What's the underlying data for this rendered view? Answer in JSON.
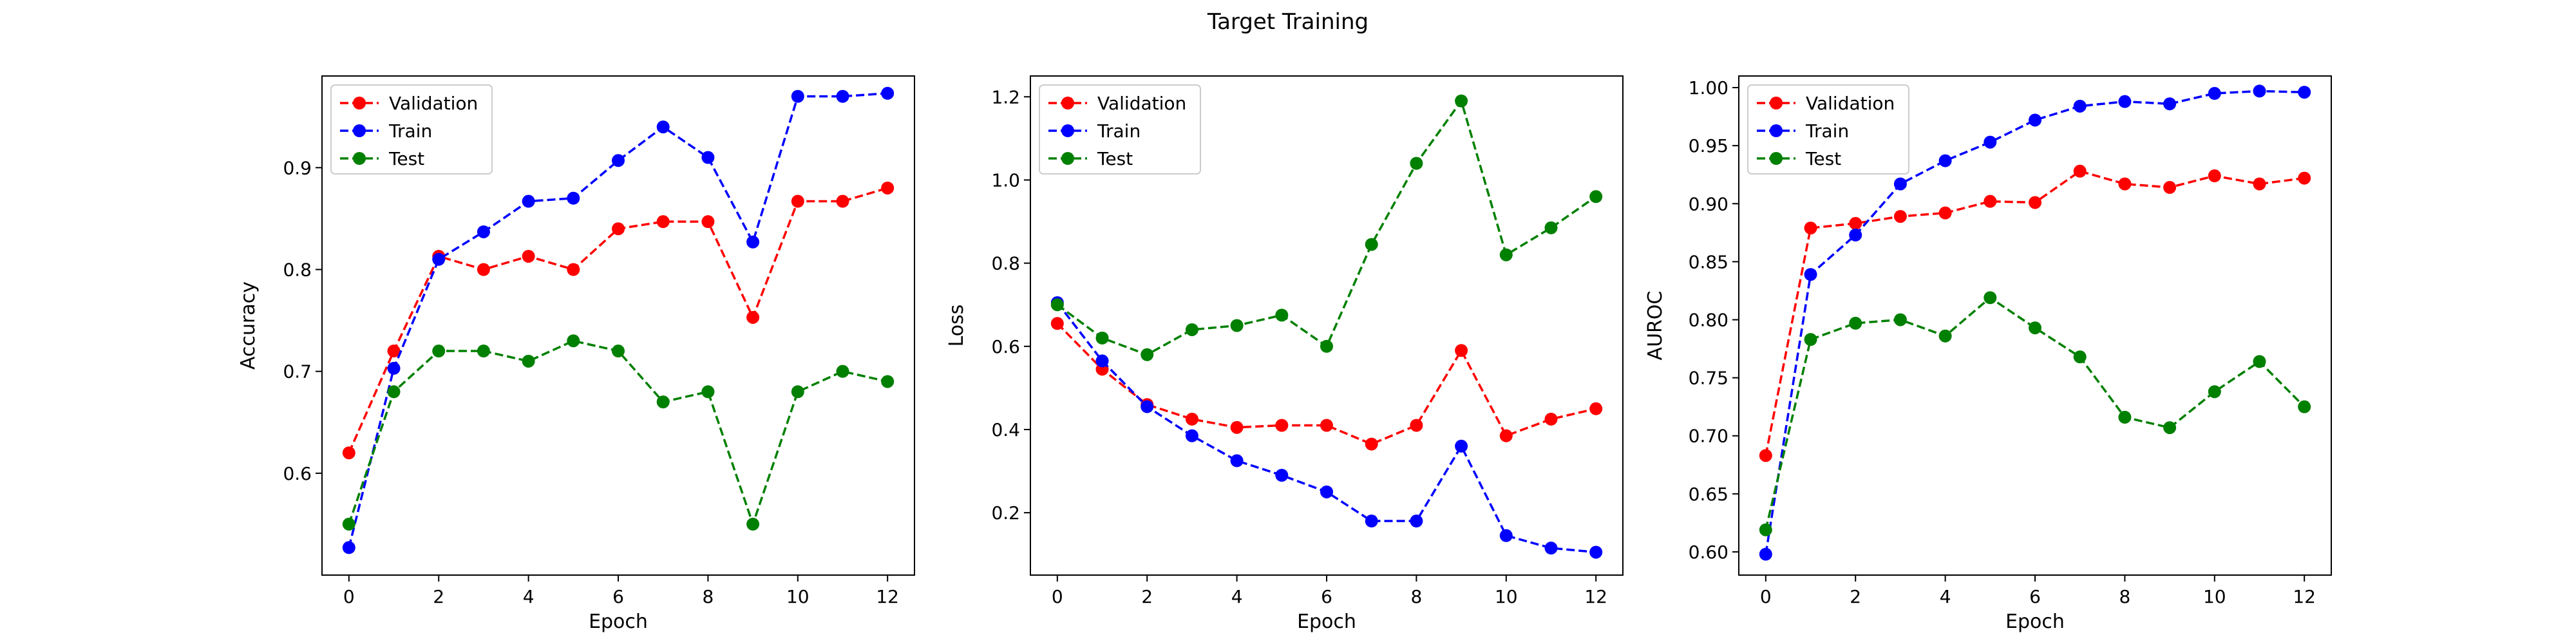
{
  "figure": {
    "title": "Target Training"
  },
  "colors": {
    "Validation": "#ff0000",
    "Train": "#0000ff",
    "Test": "#008000"
  },
  "chart_data": [
    {
      "type": "line",
      "title": "",
      "xlabel": "Epoch",
      "ylabel": "Accuracy",
      "xlim": [
        -0.6,
        12.6
      ],
      "ylim": [
        0.5,
        0.99
      ],
      "xticks": [
        0,
        2,
        4,
        6,
        8,
        10,
        12
      ],
      "yticks": [
        0.6,
        0.7,
        0.8,
        0.9
      ],
      "ytick_labels": [
        "0.6",
        "0.7",
        "0.8",
        "0.9"
      ],
      "legend": "top-left",
      "grid": false,
      "x": [
        0,
        1,
        2,
        3,
        4,
        5,
        6,
        7,
        8,
        9,
        10,
        11,
        12
      ],
      "series": [
        {
          "name": "Validation",
          "values": [
            0.62,
            0.72,
            0.813,
            0.8,
            0.813,
            0.8,
            0.84,
            0.847,
            0.847,
            0.753,
            0.867,
            0.867,
            0.88
          ]
        },
        {
          "name": "Train",
          "values": [
            0.527,
            0.703,
            0.81,
            0.837,
            0.867,
            0.87,
            0.907,
            0.94,
            0.91,
            0.827,
            0.97,
            0.97,
            0.973
          ]
        },
        {
          "name": "Test",
          "values": [
            0.55,
            0.68,
            0.72,
            0.72,
            0.71,
            0.73,
            0.72,
            0.67,
            0.68,
            0.55,
            0.68,
            0.7,
            0.69
          ]
        }
      ]
    },
    {
      "type": "line",
      "title": "",
      "xlabel": "Epoch",
      "ylabel": "Loss",
      "xlim": [
        -0.6,
        12.6
      ],
      "ylim": [
        0.05,
        1.25
      ],
      "xticks": [
        0,
        2,
        4,
        6,
        8,
        10,
        12
      ],
      "yticks": [
        0.2,
        0.4,
        0.6,
        0.8,
        1.0,
        1.2
      ],
      "ytick_labels": [
        "0.2",
        "0.4",
        "0.6",
        "0.8",
        "1.0",
        "1.2"
      ],
      "legend": "top-left",
      "grid": false,
      "x": [
        0,
        1,
        2,
        3,
        4,
        5,
        6,
        7,
        8,
        9,
        10,
        11,
        12
      ],
      "series": [
        {
          "name": "Validation",
          "values": [
            0.655,
            0.545,
            0.46,
            0.425,
            0.405,
            0.41,
            0.41,
            0.365,
            0.41,
            0.59,
            0.385,
            0.425,
            0.45
          ]
        },
        {
          "name": "Train",
          "values": [
            0.705,
            0.565,
            0.455,
            0.385,
            0.325,
            0.29,
            0.25,
            0.18,
            0.18,
            0.36,
            0.145,
            0.115,
            0.105
          ]
        },
        {
          "name": "Test",
          "values": [
            0.7,
            0.62,
            0.58,
            0.64,
            0.65,
            0.675,
            0.6,
            0.845,
            1.04,
            1.19,
            0.82,
            0.885,
            0.96
          ]
        }
      ]
    },
    {
      "type": "line",
      "title": "",
      "xlabel": "Epoch",
      "ylabel": "AUROC",
      "xlim": [
        -0.6,
        12.6
      ],
      "ylim": [
        0.58,
        1.01
      ],
      "xticks": [
        0,
        2,
        4,
        6,
        8,
        10,
        12
      ],
      "yticks": [
        0.6,
        0.65,
        0.7,
        0.75,
        0.8,
        0.85,
        0.9,
        0.95,
        1.0
      ],
      "ytick_labels": [
        "0.60",
        "0.65",
        "0.70",
        "0.75",
        "0.80",
        "0.85",
        "0.90",
        "0.95",
        "1.00"
      ],
      "legend": "top-left",
      "grid": false,
      "x": [
        0,
        1,
        2,
        3,
        4,
        5,
        6,
        7,
        8,
        9,
        10,
        11,
        12
      ],
      "series": [
        {
          "name": "Validation",
          "values": [
            0.683,
            0.879,
            0.883,
            0.889,
            0.892,
            0.902,
            0.901,
            0.928,
            0.917,
            0.914,
            0.924,
            0.917,
            0.922
          ]
        },
        {
          "name": "Train",
          "values": [
            0.598,
            0.839,
            0.873,
            0.917,
            0.937,
            0.953,
            0.972,
            0.984,
            0.988,
            0.986,
            0.995,
            0.997,
            0.996
          ]
        },
        {
          "name": "Test",
          "values": [
            0.619,
            0.783,
            0.797,
            0.8,
            0.786,
            0.819,
            0.793,
            0.768,
            0.716,
            0.707,
            0.738,
            0.764,
            0.725
          ]
        }
      ]
    }
  ]
}
